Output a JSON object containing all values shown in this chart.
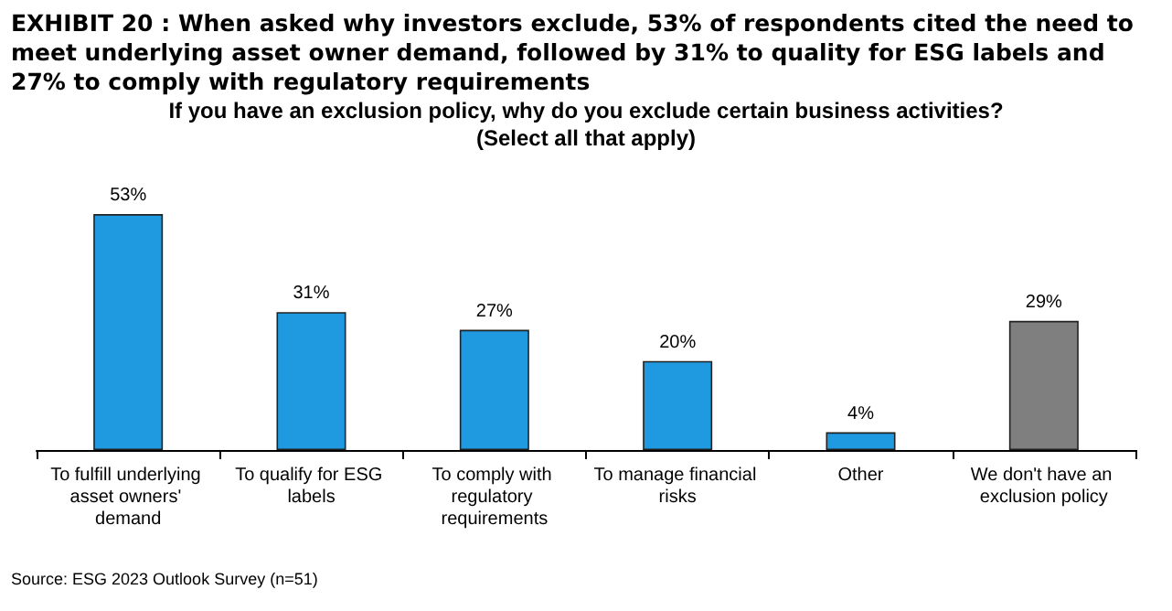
{
  "chart_data": {
    "type": "bar",
    "title": "EXHIBIT 20 : When asked why investors exclude, 53% of respondents cited the need to meet underlying asset owner demand, followed by 31% to quality for ESG labels and 27% to comply with regulatory requirements",
    "subtitle": "If you have an exclusion policy, why do you exclude certain business activities?\n(Select all that apply)",
    "categories": [
      "To fulfill underlying asset owners' demand",
      "To qualify for ESG labels",
      "To comply with regulatory requirements",
      "To manage financial risks",
      "Other",
      "We don't have an exclusion policy"
    ],
    "values": [
      53,
      31,
      27,
      20,
      4,
      29
    ],
    "colors": [
      "#1f9ae0",
      "#1f9ae0",
      "#1f9ae0",
      "#1f9ae0",
      "#1f9ae0",
      "#7f7f7f"
    ],
    "data_labels": true,
    "value_labels": [
      "53%",
      "31%",
      "27%",
      "20%",
      "4%",
      "29%"
    ],
    "annotations": [
      "Source: ESG 2023 Outlook Survey (n=51)"
    ]
  }
}
